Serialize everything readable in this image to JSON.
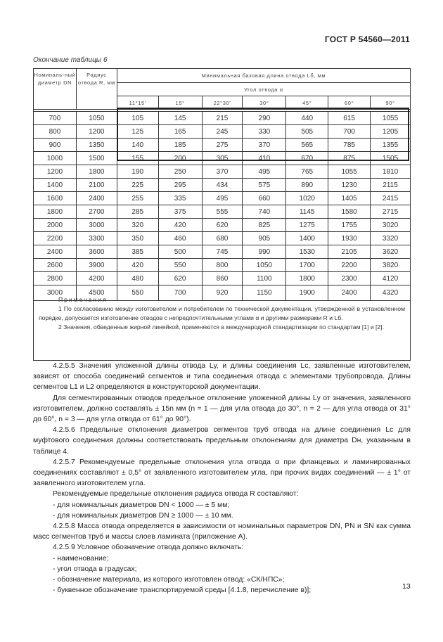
{
  "header": {
    "standard": "ГОСТ Р 54560—2011"
  },
  "table": {
    "caption": "Окончание таблицы 6",
    "col_dn": "Номиналь-ный диаметр DN",
    "col_r": "Радиус отвода R, мм",
    "col_group": "Минимальная базовая длина отвода Lб, мм",
    "col_angle": "Угол отвода α",
    "angles": [
      "11°15'",
      "15°",
      "22°30'",
      "30°",
      "45°",
      "60°",
      "90°"
    ],
    "rows": [
      [
        "700",
        "1050",
        "105",
        "145",
        "215",
        "290",
        "440",
        "615",
        "1055"
      ],
      [
        "800",
        "1200",
        "125",
        "165",
        "245",
        "330",
        "505",
        "700",
        "1205"
      ],
      [
        "900",
        "1350",
        "140",
        "185",
        "275",
        "370",
        "565",
        "785",
        "1355"
      ],
      [
        "1000",
        "1500",
        "155",
        "200",
        "305",
        "410",
        "670",
        "875",
        "1505"
      ],
      [
        "1200",
        "1800",
        "190",
        "250",
        "370",
        "495",
        "765",
        "1055",
        "1810"
      ],
      [
        "1400",
        "2100",
        "225",
        "295",
        "434",
        "575",
        "890",
        "1230",
        "2115"
      ],
      [
        "1600",
        "2400",
        "255",
        "335",
        "495",
        "660",
        "1020",
        "1405",
        "2415"
      ],
      [
        "1800",
        "2700",
        "285",
        "375",
        "555",
        "740",
        "1145",
        "1580",
        "2715"
      ],
      [
        "2000",
        "3000",
        "320",
        "420",
        "620",
        "825",
        "1275",
        "1755",
        "3020"
      ],
      [
        "2200",
        "3300",
        "350",
        "460",
        "680",
        "905",
        "1400",
        "1930",
        "3320"
      ],
      [
        "2400",
        "3600",
        "385",
        "500",
        "745",
        "990",
        "1530",
        "2105",
        "3620"
      ],
      [
        "2600",
        "3900",
        "420",
        "550",
        "800",
        "1050",
        "1700",
        "2200",
        "3820"
      ],
      [
        "2800",
        "4200",
        "480",
        "620",
        "860",
        "1100",
        "1800",
        "2300",
        "4120"
      ],
      [
        "3000",
        "4500",
        "550",
        "700",
        "920",
        "1150",
        "1900",
        "2400",
        "4320"
      ]
    ],
    "notes": {
      "title": "Примечания",
      "n1": "1 По согласованию между изготовителем и потребителем по технической документации, утвержденной в установленном порядке, допускается изготовление отводов с непредпочтительными углами α и другими размерами R и Lб.",
      "n2": "2 Значения, обведенные жирной линейкой, применяются в международной стандартизации по стандартам [1] и [2]."
    }
  },
  "body": [
    "4.2.5.5 Значения уложенной длины отвода Lу, и длины соединения Lс, заявленные изготовителем, зависят от способа соединений сегментов и типа соединения отвода с элементами трубопровода. Длины сегментов L1 и L2 определяются в конструкторской документации.",
    "Для сегментированных отводов предельное отклонение уложенной длины Lу от значения, заявленного изготовителем, должно составлять ± 15n мм (n = 1 — для угла отвода до 30°, n = 2 — для угла отвода от 31° до 60°,  n = 3 — для угла отвода от 61° до 90°).",
    "4.2.5.6 Предельные отклонения диаметров сегментов труб отвода на длине соединения Lс для муфтового соединения должны соответствовать предельным отклонениям для диаметра Dн, указанным в таблице 4.",
    "4.2.5.7 Рекомендуемые предельные отклонения угла отвода α при фланцевых и ламинированных соединениях составляют ± 0,5° от заявленного изготовителем угла, при прочих видах соединений — ± 1° от заявленного изготовителем угла.",
    "Рекомендуемые предельные отклонения радиуса отвода R составляют:",
    "- для номинальных диаметров DN < 1000 — ± 5 мм;",
    "- для номинальных диаметров DN ≥ 1000 — ± 10 мм.",
    "4.2.5.8 Масса отвода определяется в зависимости от номинальных параметров DN, PN и SN как сумма масс сегментов труб и массы слоев ламината (приложение А).",
    "4.2.5.9 Условное обозначение отвода должно включать:",
    "- наименование;",
    "- угол отвода в градусах;",
    "- обозначение материала, из которого изготовлен отвод: «СК/НПС»;",
    "- буквенное обозначение транспортируемой среды [4.1.8, перечисление в)];"
  ],
  "page_number": "13"
}
